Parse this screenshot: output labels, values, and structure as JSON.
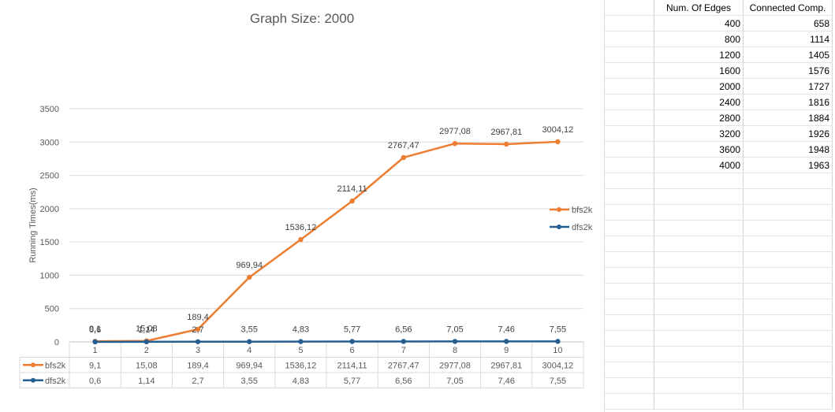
{
  "chart_data": {
    "type": "line",
    "title": "Graph Size: 2000",
    "ylabel": "Running Times(ms)",
    "xlabel": "",
    "categories": [
      "1",
      "2",
      "3",
      "4",
      "5",
      "6",
      "7",
      "8",
      "9",
      "10"
    ],
    "ylim": [
      0,
      3500
    ],
    "yticks": [
      "0",
      "500",
      "1000",
      "1500",
      "2000",
      "2500",
      "3000",
      "3500"
    ],
    "grid": true,
    "legend_position": "right",
    "data_table": true,
    "series": [
      {
        "name": "bfs2k",
        "color": "#ed7d31",
        "values": [
          9.1,
          15.08,
          189.4,
          969.94,
          1536.12,
          2114.11,
          2767.47,
          2977.08,
          2967.81,
          3004.12
        ],
        "labels": [
          "9,1",
          "15,08",
          "189,4",
          "969,94",
          "1536,12",
          "2114,11",
          "2767,47",
          "2977,08",
          "2967,81",
          "3004,12"
        ]
      },
      {
        "name": "dfs2k",
        "color": "#255e91",
        "values": [
          0.6,
          1.14,
          2.7,
          3.55,
          4.83,
          5.77,
          6.56,
          7.05,
          7.46,
          7.55
        ],
        "labels": [
          "0,6",
          "1,14",
          "2,7",
          "3,55",
          "4,83",
          "5,77",
          "6,56",
          "7,05",
          "7,46",
          "7,55"
        ]
      }
    ]
  },
  "sheet": {
    "headers": [
      "Num. Of Edges",
      "Connected Comp."
    ],
    "rows": [
      [
        "400",
        "658"
      ],
      [
        "800",
        "1114"
      ],
      [
        "1200",
        "1405"
      ],
      [
        "1600",
        "1576"
      ],
      [
        "2000",
        "1727"
      ],
      [
        "2400",
        "1816"
      ],
      [
        "2800",
        "1884"
      ],
      [
        "3200",
        "1926"
      ],
      [
        "3600",
        "1948"
      ],
      [
        "4000",
        "1963"
      ]
    ],
    "empty_rows": 15
  }
}
